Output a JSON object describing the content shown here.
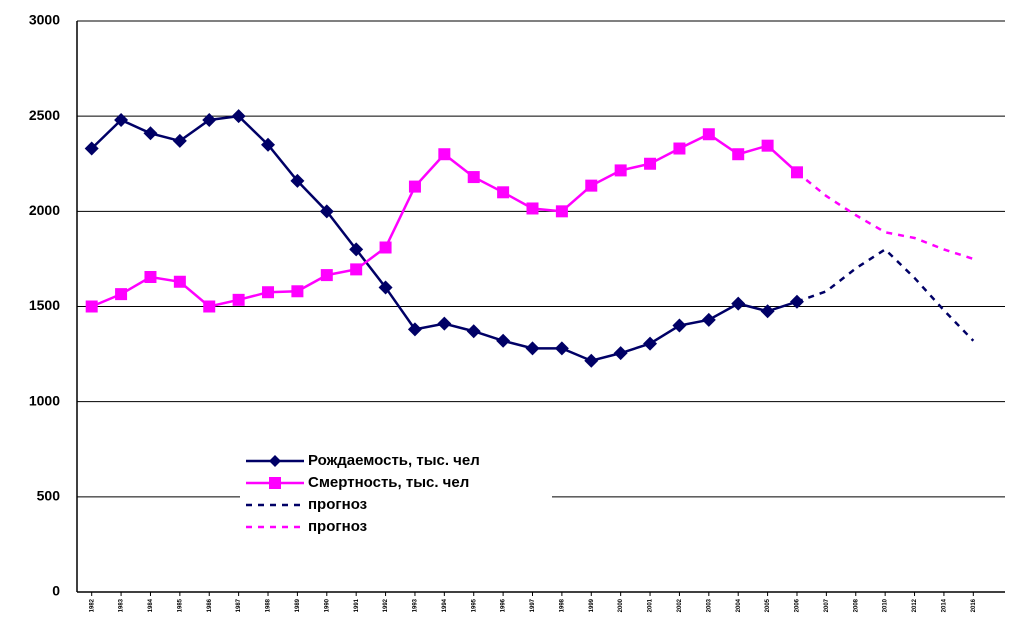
{
  "chart_data": {
    "type": "line",
    "categories": [
      "1982",
      "1983",
      "1984",
      "1985",
      "1986",
      "1987",
      "1988",
      "1989",
      "1990",
      "1991",
      "1992",
      "1993",
      "1994",
      "1995",
      "1996",
      "1997",
      "1998",
      "1999",
      "2000",
      "2001",
      "2002",
      "2003",
      "2004",
      "2005",
      "2006",
      "2007",
      "2008",
      "2010",
      "2012",
      "2014",
      "2016"
    ],
    "series": [
      {
        "name": "Рождаемость, тыс. чел",
        "color": "#000066",
        "marker": "diamond",
        "dash": false,
        "values": [
          2330,
          2480,
          2410,
          2370,
          2480,
          2500,
          2350,
          2160,
          2000,
          1800,
          1600,
          1380,
          1410,
          1370,
          1320,
          1280,
          1280,
          1215,
          1255,
          1305,
          1400,
          1430,
          1515,
          1475,
          1525,
          null,
          null,
          null,
          null,
          null,
          null
        ]
      },
      {
        "name": "Смертность, тыс. чел",
        "color": "#ff00ff",
        "marker": "square",
        "dash": false,
        "values": [
          1500,
          1565,
          1655,
          1630,
          1500,
          1535,
          1575,
          1580,
          1665,
          1695,
          1810,
          2130,
          2300,
          2180,
          2100,
          2015,
          2000,
          2135,
          2215,
          2250,
          2330,
          2405,
          2300,
          2345,
          2205,
          null,
          null,
          null,
          null,
          null,
          null
        ]
      },
      {
        "name": "прогноз",
        "color": "#000066",
        "marker": "none",
        "dash": true,
        "values": [
          null,
          null,
          null,
          null,
          null,
          null,
          null,
          null,
          null,
          null,
          null,
          null,
          null,
          null,
          null,
          null,
          null,
          null,
          null,
          null,
          null,
          null,
          null,
          null,
          1525,
          1580,
          1700,
          1800,
          1650,
          1480,
          1320
        ]
      },
      {
        "name": "прогноз",
        "color": "#ff00ff",
        "marker": "none",
        "dash": true,
        "values": [
          null,
          null,
          null,
          null,
          null,
          null,
          null,
          null,
          null,
          null,
          null,
          null,
          null,
          null,
          null,
          null,
          null,
          null,
          null,
          null,
          null,
          null,
          null,
          null,
          2205,
          2080,
          1980,
          1890,
          1860,
          1800,
          1750
        ]
      }
    ],
    "ylim": [
      0,
      3000
    ],
    "yticks": [
      0,
      500,
      1000,
      1500,
      2000,
      2500,
      3000
    ],
    "grid": true
  }
}
